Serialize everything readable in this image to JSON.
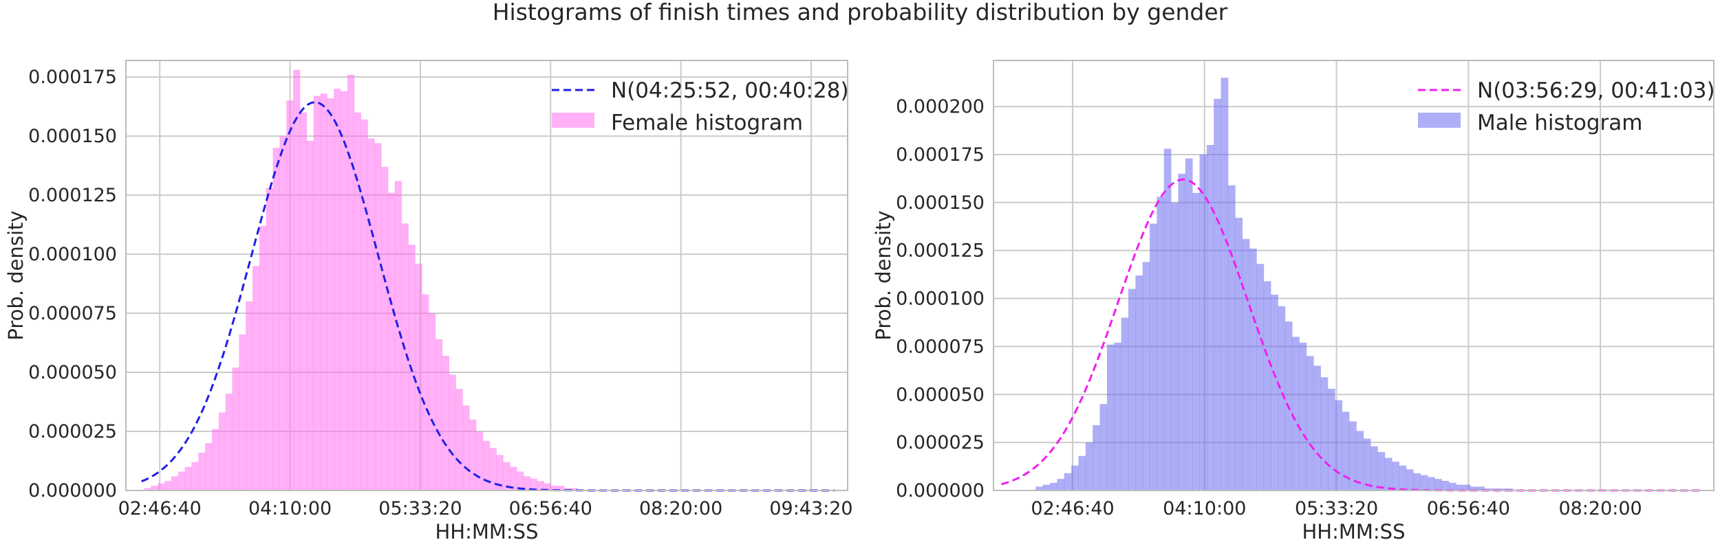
{
  "title": "Histograms of finish times and probability distribution by gender",
  "chart_data": [
    {
      "type": "bar",
      "subtype": "histogram_with_normal_fit",
      "xlabel": "HH:MM:SS",
      "ylabel": "Prob. density",
      "xlim_seconds": [
        8700,
        36400
      ],
      "ylim": [
        0,
        0.000182
      ],
      "x_ticks": [
        {
          "seconds": 10000,
          "label": "02:46:40"
        },
        {
          "seconds": 15000,
          "label": "04:10:00"
        },
        {
          "seconds": 20000,
          "label": "05:33:20"
        },
        {
          "seconds": 25000,
          "label": "06:56:40"
        },
        {
          "seconds": 30000,
          "label": "08:20:00"
        },
        {
          "seconds": 35000,
          "label": "09:43:20"
        }
      ],
      "y_ticks": [
        "0.000000",
        "0.000025",
        "0.000050",
        "0.000075",
        "0.000100",
        "0.000125",
        "0.000150",
        "0.000175"
      ],
      "y_tick_values": [
        0,
        2.5e-05,
        5e-05,
        7.5e-05,
        0.0001,
        0.000125,
        0.00015,
        0.000175
      ],
      "grid": true,
      "legend_position": "top-right",
      "histogram": {
        "name": "Female histogram",
        "color": "#ff6ff0",
        "opacity": 0.55,
        "bin_start_seconds": 9400,
        "bin_width_seconds": 260,
        "values": [
          1e-06,
          2e-06,
          3e-06,
          4e-06,
          6e-06,
          8e-06,
          1e-05,
          1.2e-05,
          1.6e-05,
          2e-05,
          2.6e-05,
          3.3e-05,
          4.1e-05,
          5.2e-05,
          6.6e-05,
          8e-05,
          9.5e-05,
          0.000112,
          0.000128,
          0.000145,
          0.00015,
          0.000165,
          0.000178,
          0.00016,
          0.000148,
          0.000167,
          0.000168,
          0.000166,
          0.00017,
          0.000169,
          0.000176,
          0.00016,
          0.000157,
          0.000149,
          0.000147,
          0.000137,
          0.000126,
          0.000131,
          0.000113,
          0.000104,
          9.6e-05,
          8.3e-05,
          7.5e-05,
          6.4e-05,
          5.7e-05,
          4.9e-05,
          4.3e-05,
          3.6e-05,
          3e-05,
          2.5e-05,
          2.1e-05,
          1.8e-05,
          1.5e-05,
          1.2e-05,
          1e-05,
          8e-06,
          6e-06,
          5e-06,
          4e-06,
          3e-06,
          2e-06,
          2e-06,
          1e-06,
          1e-06
        ]
      },
      "normal_fit": {
        "name": "N(04:25:52, 00:40:28)",
        "mean_seconds": 15952,
        "std_seconds": 2428,
        "color": "#1f1fe6",
        "line_style": "dashed",
        "x_range_seconds": [
          9300,
          35900
        ]
      }
    },
    {
      "type": "bar",
      "subtype": "histogram_with_normal_fit",
      "xlabel": "HH:MM:SS",
      "ylabel": "Prob. density",
      "xlim_seconds": [
        7000,
        34300
      ],
      "ylim": [
        0,
        0.000224
      ],
      "x_ticks": [
        {
          "seconds": 10000,
          "label": "02:46:40"
        },
        {
          "seconds": 15000,
          "label": "04:10:00"
        },
        {
          "seconds": 20000,
          "label": "05:33:20"
        },
        {
          "seconds": 25000,
          "label": "06:56:40"
        },
        {
          "seconds": 30000,
          "label": "08:20:00"
        }
      ],
      "y_ticks": [
        "0.000000",
        "0.000025",
        "0.000050",
        "0.000075",
        "0.000100",
        "0.000125",
        "0.000150",
        "0.000175",
        "0.000200"
      ],
      "y_tick_values": [
        0,
        2.5e-05,
        5e-05,
        7.5e-05,
        0.0001,
        0.000125,
        0.00015,
        0.000175,
        0.0002
      ],
      "grid": true,
      "legend_position": "top-right",
      "histogram": {
        "name": "Male histogram",
        "color": "#6c6cf0",
        "opacity": 0.55,
        "bin_start_seconds": 8600,
        "bin_width_seconds": 270,
        "values": [
          2e-06,
          3e-06,
          4e-06,
          6e-06,
          9e-06,
          1.3e-05,
          1.8e-05,
          2.5e-05,
          3.4e-05,
          4.5e-05,
          7.6e-05,
          7.7e-05,
          9e-05,
          0.000105,
          0.000112,
          0.000119,
          0.000139,
          0.000153,
          0.000178,
          0.00015,
          0.000165,
          0.000173,
          0.000155,
          0.000175,
          0.00018,
          0.000204,
          0.000215,
          0.000159,
          0.000142,
          0.000131,
          0.000126,
          0.000118,
          0.000109,
          0.000102,
          9.6e-05,
          8.8e-05,
          8e-05,
          7.7e-05,
          7e-05,
          6.5e-05,
          5.9e-05,
          5.3e-05,
          4.7e-05,
          4.1e-05,
          3.6e-05,
          3.1e-05,
          2.7e-05,
          2.3e-05,
          2e-05,
          1.7e-05,
          1.5e-05,
          1.3e-05,
          1.1e-05,
          9e-06,
          8e-06,
          7e-06,
          6e-06,
          5e-06,
          4e-06,
          3e-06,
          3e-06,
          2e-06,
          2e-06,
          1e-06,
          1e-06,
          1e-06,
          1e-06
        ]
      },
      "normal_fit": {
        "name": "N(03:56:29, 00:41:03)",
        "mean_seconds": 14189,
        "std_seconds": 2463,
        "color": "#f01ef0",
        "line_style": "dashed",
        "x_range_seconds": [
          7300,
          33800
        ]
      }
    }
  ]
}
